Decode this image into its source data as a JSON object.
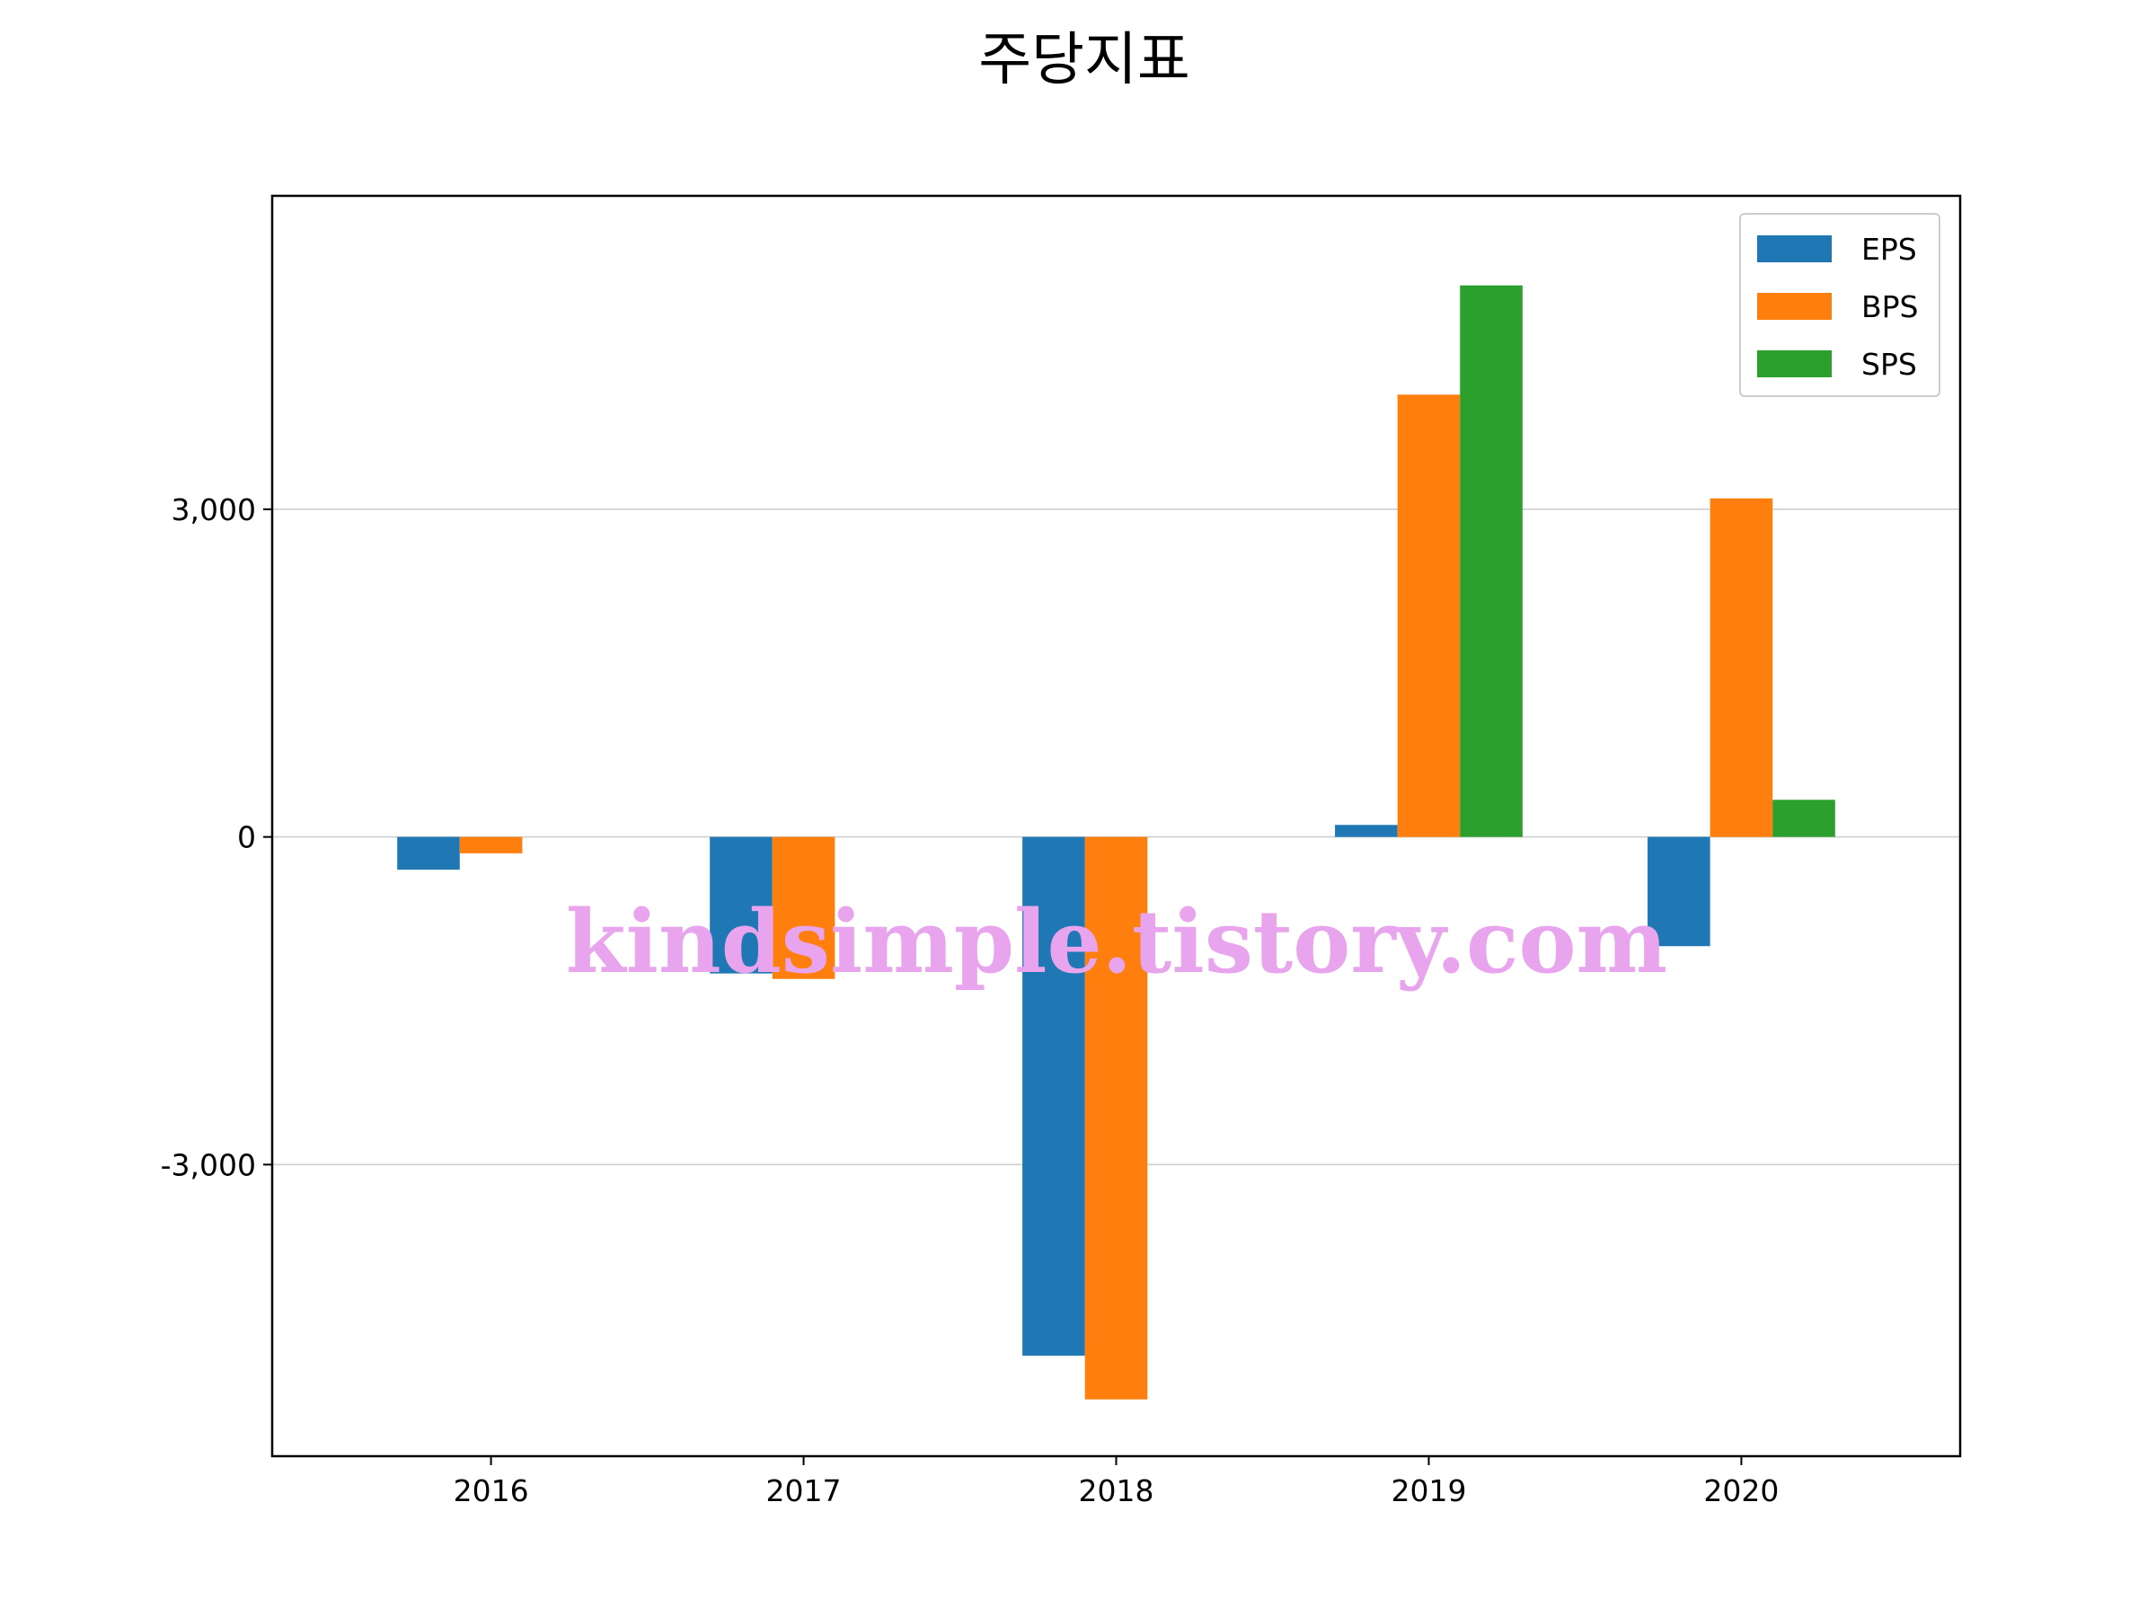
{
  "chart_data": {
    "type": "bar",
    "title": "주당지표",
    "xlabel": "",
    "ylabel": "",
    "categories": [
      "2016",
      "2017",
      "2018",
      "2019",
      "2020"
    ],
    "series": [
      {
        "name": "EPS",
        "color": "#1f77b4",
        "values": [
          -300,
          -1250,
          -4750,
          110,
          -1000
        ]
      },
      {
        "name": "BPS",
        "color": "#ff7f0e",
        "values": [
          -150,
          -1300,
          -5150,
          4050,
          3100
        ]
      },
      {
        "name": "SPS",
        "color": "#2ca02c",
        "values": [
          null,
          null,
          null,
          5050,
          340
        ]
      }
    ],
    "yticks": [
      -3000,
      0,
      3000
    ],
    "ytick_labels": [
      "-3,000",
      "0",
      "3,000"
    ],
    "ylim": [
      -5670,
      5870
    ],
    "grid": "horizontal",
    "legend_position": "top-right"
  },
  "watermark": "kindsimple.tistory.com"
}
